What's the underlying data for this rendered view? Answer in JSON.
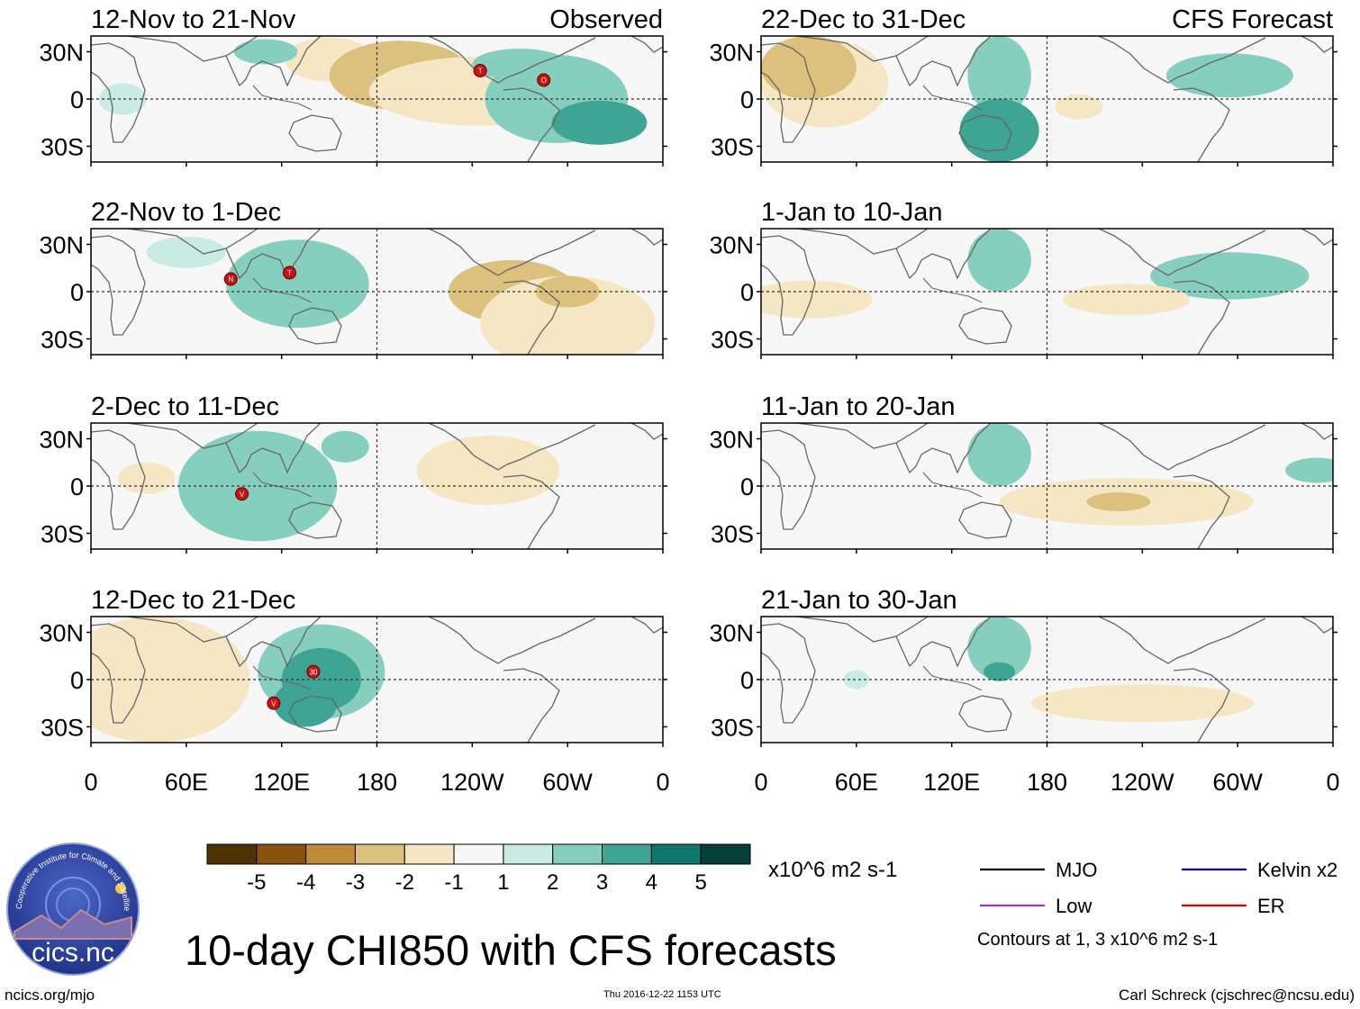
{
  "title": "10-day CHI850 with CFS forecasts",
  "footer": {
    "url": "ncics.org/mjo",
    "timestamp": "Thu 2016-12-22 1153 UTC",
    "author": "Carl Schreck (cjschrec@ncsu.edu)"
  },
  "logo": {
    "text": "cics.nc",
    "arc_text": "Cooperative Institute for Climate and Satellites"
  },
  "chart_data": {
    "type": "map-panels",
    "lon_ticks": [
      "0",
      "60E",
      "120E",
      "180",
      "120W",
      "60W",
      "0"
    ],
    "lat_ticks": [
      "30N",
      "0",
      "30S"
    ],
    "columns": [
      {
        "header_right": "Observed",
        "panels": [
          {
            "period": "12-Nov to 21-Nov",
            "markers": [
              "T",
              "O"
            ]
          },
          {
            "period": "22-Nov to 1-Dec",
            "markers": [
              "N",
              "T"
            ]
          },
          {
            "period": "2-Dec to 11-Dec",
            "markers": [
              "V"
            ]
          },
          {
            "period": "12-Dec to 21-Dec",
            "markers": [
              "30",
              "V"
            ]
          }
        ]
      },
      {
        "header_right": "CFS Forecast",
        "panels": [
          {
            "period": "22-Dec to 31-Dec",
            "markers": []
          },
          {
            "period": "1-Jan to 10-Jan",
            "markers": []
          },
          {
            "period": "11-Jan to 20-Jan",
            "markers": []
          },
          {
            "period": "21-Jan to 30-Jan",
            "markers": []
          }
        ]
      }
    ],
    "colorbar": {
      "units": "x10^6 m2 s-1",
      "tick_labels": [
        "-5",
        "-4",
        "-3",
        "-2",
        "-1",
        "1",
        "2",
        "3",
        "4",
        "5"
      ],
      "colors": [
        "#4e3204",
        "#8a520c",
        "#c08a3a",
        "#dcc07e",
        "#f5e7c4",
        "#f7f7f7",
        "#c8ebe3",
        "#86cfbe",
        "#3ea595",
        "#11766b",
        "#063f38"
      ]
    },
    "legend": [
      {
        "label": "MJO",
        "color": "#000000"
      },
      {
        "label": "Kelvin x2",
        "color": "#0000dd"
      },
      {
        "label": "Low",
        "color": "#9933dd"
      },
      {
        "label": "ER",
        "color": "#dd0000"
      }
    ],
    "contour_note": "Contours at 1, 3 x10^6 m2 s-1"
  }
}
